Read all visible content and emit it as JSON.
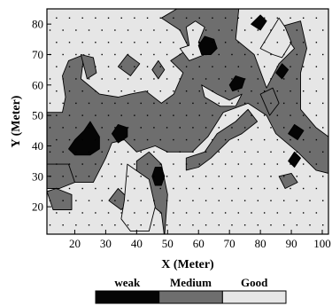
{
  "chart_data": {
    "type": "heatmap",
    "title": "",
    "xlabel": "X (Meter)",
    "ylabel": "Y (Meter)",
    "xlim": [
      11,
      102
    ],
    "ylim": [
      11,
      85
    ],
    "x_ticks": [
      20,
      30,
      40,
      50,
      60,
      70,
      80,
      90,
      100
    ],
    "y_ticks": [
      20,
      30,
      40,
      50,
      60,
      70,
      80
    ],
    "grid": false,
    "legend_position": "bottom-center",
    "categories": [
      {
        "name": "weak",
        "color": "#050505"
      },
      {
        "name": "Medium",
        "color": "#6e6e6e"
      },
      {
        "name": "Good",
        "color": "#e6e6e6"
      }
    ],
    "default_class": "Good",
    "regions": [
      {
        "class": "Medium",
        "points": [
          [
            11,
            51
          ],
          [
            16,
            51
          ],
          [
            17,
            56
          ],
          [
            16,
            63
          ],
          [
            18,
            68
          ],
          [
            23,
            70
          ],
          [
            22,
            62
          ],
          [
            28,
            57
          ],
          [
            34,
            56
          ],
          [
            38,
            57
          ],
          [
            43,
            58
          ],
          [
            48,
            54
          ],
          [
            52,
            57
          ],
          [
            55,
            64
          ],
          [
            51,
            68
          ],
          [
            57,
            72
          ],
          [
            54,
            78
          ],
          [
            48,
            82
          ],
          [
            53,
            85
          ],
          [
            73,
            85
          ],
          [
            72,
            75
          ],
          [
            78,
            70
          ],
          [
            82,
            59
          ],
          [
            86,
            67
          ],
          [
            91,
            72
          ],
          [
            86,
            79
          ],
          [
            93,
            81
          ],
          [
            95,
            72
          ],
          [
            93,
            64
          ],
          [
            93,
            52
          ],
          [
            98,
            46
          ],
          [
            102,
            43
          ],
          [
            102,
            31
          ],
          [
            98,
            32
          ],
          [
            92,
            38
          ],
          [
            85,
            44
          ],
          [
            82,
            50
          ],
          [
            76,
            54
          ],
          [
            68,
            51
          ],
          [
            63,
            43
          ],
          [
            58,
            38
          ],
          [
            50,
            38
          ],
          [
            46,
            40
          ],
          [
            40,
            38
          ],
          [
            36,
            42
          ],
          [
            32,
            41
          ],
          [
            30,
            36
          ],
          [
            26,
            28
          ],
          [
            19,
            28
          ],
          [
            15,
            26
          ],
          [
            11,
            26
          ]
        ]
      },
      {
        "class": "Good",
        "points": [
          [
            80,
            72
          ],
          [
            83,
            77
          ],
          [
            86,
            82
          ],
          [
            88,
            79
          ],
          [
            90,
            74
          ],
          [
            87,
            69
          ],
          [
            84,
            70
          ]
        ]
      },
      {
        "class": "Good",
        "points": [
          [
            54,
            72
          ],
          [
            57,
            73
          ],
          [
            56,
            79
          ],
          [
            59,
            81
          ],
          [
            62,
            79
          ],
          [
            60,
            74
          ],
          [
            62,
            70
          ],
          [
            57,
            68
          ]
        ]
      },
      {
        "class": "Good",
        "points": [
          [
            61,
            60
          ],
          [
            66,
            57
          ],
          [
            70,
            55
          ],
          [
            74,
            57
          ],
          [
            72,
            53
          ],
          [
            67,
            53
          ],
          [
            62,
            56
          ]
        ]
      },
      {
        "class": "Medium",
        "points": [
          [
            56,
            36
          ],
          [
            62,
            38
          ],
          [
            66,
            44
          ],
          [
            72,
            48
          ],
          [
            76,
            52
          ],
          [
            79,
            48
          ],
          [
            74,
            44
          ],
          [
            70,
            42
          ],
          [
            64,
            36
          ],
          [
            60,
            33
          ],
          [
            56,
            32
          ]
        ]
      },
      {
        "class": "Medium",
        "points": [
          [
            49,
            10
          ],
          [
            48,
            18
          ],
          [
            43,
            22
          ],
          [
            40,
            28
          ],
          [
            40,
            35
          ],
          [
            44,
            38
          ],
          [
            48,
            34
          ],
          [
            50,
            24
          ]
        ]
      },
      {
        "class": "Medium",
        "points": [
          [
            11,
            34
          ],
          [
            18,
            34
          ],
          [
            20,
            28
          ],
          [
            15,
            26
          ],
          [
            11,
            26
          ]
        ]
      },
      {
        "class": "Medium",
        "points": [
          [
            11,
            25
          ],
          [
            13,
            19
          ],
          [
            19,
            19
          ],
          [
            19,
            24
          ],
          [
            14,
            26
          ]
        ]
      },
      {
        "class": "Medium",
        "points": [
          [
            34,
            26
          ],
          [
            31,
            22
          ],
          [
            35,
            19
          ],
          [
            38,
            22
          ]
        ]
      },
      {
        "class": "Medium",
        "points": [
          [
            24,
            62
          ],
          [
            27,
            64
          ],
          [
            26,
            69
          ],
          [
            22,
            70
          ]
        ]
      },
      {
        "class": "Medium",
        "points": [
          [
            34,
            66
          ],
          [
            38,
            63
          ],
          [
            41,
            67
          ],
          [
            37,
            70
          ]
        ]
      },
      {
        "class": "Medium",
        "points": [
          [
            45,
            65
          ],
          [
            47,
            62
          ],
          [
            49,
            65
          ],
          [
            47,
            68
          ]
        ]
      },
      {
        "class": "Medium",
        "points": [
          [
            80,
            57
          ],
          [
            83,
            50
          ],
          [
            86,
            54
          ],
          [
            84,
            59
          ]
        ]
      },
      {
        "class": "Medium",
        "points": [
          [
            86,
            30
          ],
          [
            88,
            26
          ],
          [
            92,
            28
          ],
          [
            90,
            31
          ]
        ]
      },
      {
        "class": "Good",
        "points": [
          [
            37,
            34
          ],
          [
            44,
            29
          ],
          [
            46,
            20
          ],
          [
            44,
            12
          ],
          [
            38,
            12
          ],
          [
            35,
            16
          ],
          [
            36,
            22
          ]
        ]
      },
      {
        "class": "weak",
        "points": [
          [
            18,
            39
          ],
          [
            20,
            42
          ],
          [
            23,
            45
          ],
          [
            25,
            48
          ],
          [
            28,
            43
          ],
          [
            28,
            39
          ],
          [
            25,
            37
          ],
          [
            20,
            37
          ]
        ]
      },
      {
        "class": "weak",
        "points": [
          [
            32,
            44
          ],
          [
            34,
            47
          ],
          [
            37,
            46
          ],
          [
            37,
            43
          ],
          [
            34,
            41
          ]
        ]
      },
      {
        "class": "weak",
        "points": [
          [
            45,
            30
          ],
          [
            46,
            33
          ],
          [
            48,
            33
          ],
          [
            49,
            30
          ],
          [
            48,
            27
          ],
          [
            46,
            27
          ]
        ]
      },
      {
        "class": "weak",
        "points": [
          [
            60,
            73
          ],
          [
            62,
            76
          ],
          [
            65,
            75
          ],
          [
            66,
            72
          ],
          [
            64,
            70
          ],
          [
            61,
            70
          ]
        ]
      },
      {
        "class": "weak",
        "points": [
          [
            70,
            60
          ],
          [
            72,
            63
          ],
          [
            75,
            62
          ],
          [
            74,
            59
          ],
          [
            71,
            58
          ]
        ]
      },
      {
        "class": "weak",
        "points": [
          [
            77,
            80
          ],
          [
            80,
            83
          ],
          [
            82,
            81
          ],
          [
            80,
            78
          ]
        ]
      },
      {
        "class": "weak",
        "points": [
          [
            85,
            64
          ],
          [
            87,
            67
          ],
          [
            89,
            65
          ],
          [
            87,
            62
          ]
        ]
      },
      {
        "class": "weak",
        "points": [
          [
            89,
            44
          ],
          [
            91,
            47
          ],
          [
            94,
            45
          ],
          [
            92,
            42
          ]
        ]
      },
      {
        "class": "weak",
        "points": [
          [
            89,
            35
          ],
          [
            91,
            38
          ],
          [
            93,
            36
          ],
          [
            91,
            33
          ]
        ]
      }
    ],
    "sample_points_grid": {
      "x_start": 12,
      "x_step": 4.2,
      "y_start": 14,
      "y_step": 4
    }
  }
}
